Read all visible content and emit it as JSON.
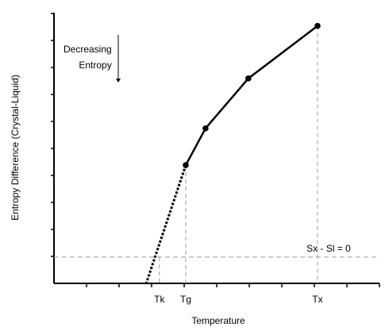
{
  "chart_data": {
    "type": "line",
    "xlabel": "Temperature",
    "ylabel": "Entropy Difference (Crystal-Liquid)",
    "x_tick_labels": [
      {
        "label": "Tk",
        "x": 0.32
      },
      {
        "label": "Tg",
        "x": 0.4
      },
      {
        "label": "Tx",
        "x": 0.8
      }
    ],
    "series": [
      {
        "style": "solid",
        "points": [
          {
            "x": 0.4,
            "y": 0.45
          },
          {
            "x": 0.46,
            "y": 0.59
          },
          {
            "x": 0.59,
            "y": 0.78
          },
          {
            "x": 0.8,
            "y": 0.98
          }
        ]
      },
      {
        "style": "dotted",
        "points": [
          {
            "x": 0.4,
            "y": 0.45
          },
          {
            "x": 0.28,
            "y": 0.0
          }
        ]
      }
    ],
    "reference_lines": [
      {
        "orientation": "horizontal",
        "y": 0.1,
        "label": "Sx - Sl = 0",
        "style": "dashed"
      },
      {
        "orientation": "vertical",
        "x": 0.32,
        "style": "dashed"
      },
      {
        "orientation": "vertical",
        "x": 0.4,
        "style": "dashed"
      },
      {
        "orientation": "vertical",
        "x": 0.8,
        "style": "dashed"
      }
    ],
    "annotation": {
      "lines": [
        "Decreasing",
        "Entropy"
      ],
      "arrow": "down"
    },
    "xlim": [
      0,
      1
    ],
    "ylim": [
      0,
      1
    ],
    "ticks": {
      "x_count": 11,
      "y_count": 11
    },
    "grid": false,
    "colors": {
      "line": "#000000",
      "reference": "#999999"
    }
  }
}
